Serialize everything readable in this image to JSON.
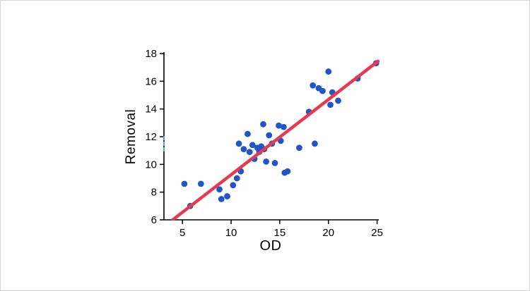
{
  "chart_data": {
    "type": "scatter",
    "title": "",
    "xlabel": "OD",
    "ylabel": "Removal",
    "xlim": [
      3.1,
      25.1
    ],
    "ylim": [
      6,
      18
    ],
    "x_ticks": [
      5,
      10,
      15,
      20,
      25
    ],
    "y_ticks": [
      6,
      8,
      10,
      12,
      14,
      16,
      18
    ],
    "grid": "off",
    "legend": "none",
    "point_color": "#2156c8",
    "trend_color": "#e73a4e",
    "axis_color": "#000000",
    "tick_label_color": "#000000",
    "points": [
      [
        5.2,
        8.6
      ],
      [
        5.8,
        7.0
      ],
      [
        6.9,
        8.6
      ],
      [
        8.8,
        8.2
      ],
      [
        9.0,
        7.5
      ],
      [
        9.6,
        7.7
      ],
      [
        10.2,
        8.5
      ],
      [
        10.6,
        9.0
      ],
      [
        10.8,
        11.5
      ],
      [
        11.0,
        9.5
      ],
      [
        11.3,
        11.1
      ],
      [
        11.7,
        12.2
      ],
      [
        11.9,
        10.9
      ],
      [
        12.2,
        11.4
      ],
      [
        12.4,
        10.4
      ],
      [
        12.7,
        11.2
      ],
      [
        12.9,
        10.9
      ],
      [
        13.1,
        11.3
      ],
      [
        13.3,
        12.9
      ],
      [
        13.4,
        11.1
      ],
      [
        13.6,
        10.2
      ],
      [
        13.9,
        12.1
      ],
      [
        14.2,
        11.5
      ],
      [
        14.5,
        10.1
      ],
      [
        14.9,
        12.8
      ],
      [
        15.1,
        11.7
      ],
      [
        15.4,
        12.7
      ],
      [
        15.5,
        9.4
      ],
      [
        15.8,
        9.5
      ],
      [
        17.0,
        11.2
      ],
      [
        18.0,
        13.8
      ],
      [
        18.4,
        15.7
      ],
      [
        18.6,
        11.5
      ],
      [
        19.0,
        15.5
      ],
      [
        19.4,
        15.3
      ],
      [
        20.0,
        16.7
      ],
      [
        20.2,
        14.3
      ],
      [
        20.4,
        15.2
      ],
      [
        21.0,
        14.6
      ],
      [
        23.0,
        16.2
      ],
      [
        24.9,
        17.3
      ]
    ],
    "trend_line": {
      "x1": 4.0,
      "y1": 6.0,
      "x2": 25.1,
      "y2": 17.45
    }
  },
  "artifact": {
    "description": "small blue dashed mark on left axis"
  }
}
